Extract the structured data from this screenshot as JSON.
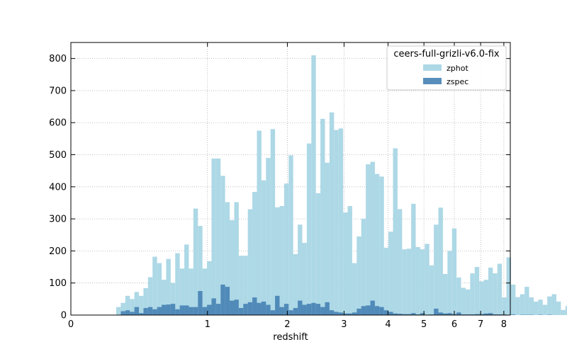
{
  "chart_data": {
    "type": "bar",
    "title": "",
    "xlabel": "redshift",
    "ylabel": "",
    "x_scale": "log(1+z)",
    "xlim": [
      0,
      8.3
    ],
    "ylim": [
      0,
      850
    ],
    "x_ticks": [
      0,
      1,
      2,
      3,
      4,
      5,
      6,
      7,
      8
    ],
    "y_ticks": [
      0,
      100,
      200,
      300,
      400,
      500,
      600,
      700,
      800
    ],
    "grid": true,
    "legend": {
      "title": "ceers-full-grizli-v6.0-fix",
      "placement": "top-right"
    },
    "colors": {
      "zphot": "#add8e6",
      "zspec": "#4682b4"
    },
    "bin_width_log1pz": 0.01,
    "bin_start_log1pz": 0.1,
    "series": [
      {
        "name": "zphot",
        "values": [
          25,
          38,
          60,
          50,
          72,
          60,
          84,
          118,
          182,
          162,
          110,
          175,
          100,
          193,
          145,
          220,
          145,
          332,
          278,
          145,
          168,
          488,
          488,
          434,
          352,
          296,
          352,
          185,
          185,
          330,
          384,
          575,
          420,
          490,
          580,
          336,
          340,
          410,
          498,
          190,
          282,
          225,
          535,
          810,
          380,
          612,
          475,
          632,
          577,
          582,
          320,
          340,
          162,
          245,
          300,
          470,
          478,
          440,
          432,
          210,
          260,
          520,
          330,
          205,
          207,
          347,
          212,
          205,
          222,
          155,
          282,
          335,
          128,
          200,
          270,
          117,
          85,
          80,
          130,
          150,
          105,
          110,
          148,
          130,
          160,
          55,
          180,
          95,
          56,
          65,
          88,
          55,
          42,
          48,
          32,
          58,
          65,
          42,
          16,
          28,
          12,
          10,
          5,
          6,
          4
        ]
      },
      {
        "name": "zspec",
        "values": [
          0,
          12,
          15,
          10,
          25,
          6,
          22,
          25,
          18,
          25,
          32,
          33,
          35,
          18,
          30,
          30,
          25,
          25,
          75,
          25,
          32,
          52,
          35,
          95,
          88,
          45,
          48,
          22,
          35,
          40,
          55,
          38,
          42,
          32,
          15,
          60,
          25,
          35,
          15,
          22,
          45,
          32,
          35,
          38,
          35,
          25,
          40,
          15,
          10,
          8,
          5,
          5,
          8,
          20,
          28,
          30,
          45,
          28,
          25,
          15,
          10,
          5,
          4,
          3,
          3,
          6,
          2,
          6,
          1,
          2,
          20,
          8,
          5,
          6,
          3,
          8,
          2,
          2,
          2,
          3,
          3,
          5,
          6,
          2,
          2,
          2,
          1,
          2,
          0,
          1,
          1,
          1,
          0,
          1,
          0,
          1,
          0,
          0,
          0,
          0,
          0,
          0,
          0,
          0,
          0
        ]
      }
    ]
  }
}
